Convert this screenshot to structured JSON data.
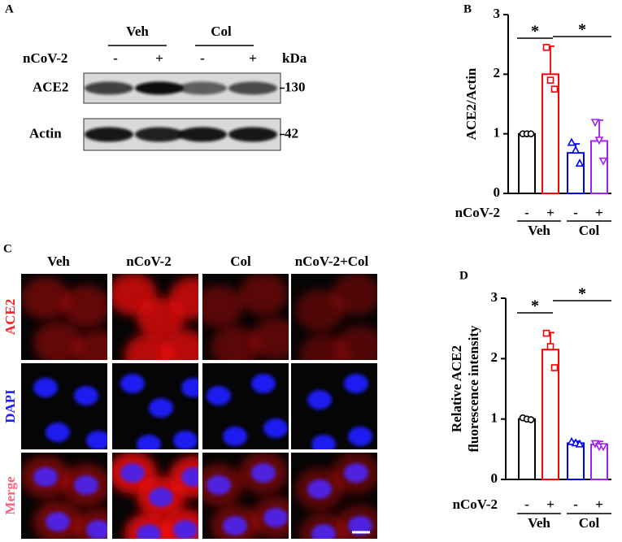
{
  "panel_a": {
    "label": "A",
    "groups": [
      "Veh",
      "Col"
    ],
    "treatment_label": "nCoV-2",
    "lanes": [
      "-",
      "+",
      "-",
      "+"
    ],
    "unit": "kDa",
    "rows": [
      {
        "name": "ACE2",
        "kda": 130
      },
      {
        "name": "Actin",
        "kda": 42
      }
    ]
  },
  "panel_c": {
    "label": "C",
    "columns": [
      "Veh",
      "nCoV-2",
      "Col",
      "nCoV-2+Col"
    ],
    "rows": [
      "ACE2",
      "DAPI",
      "Merge"
    ]
  },
  "chart_data": [
    {
      "type": "bar",
      "panel": "B",
      "ylabel": "ACE2/Actin",
      "x_row_label": "nCoV-2",
      "categories": [
        "-",
        "+",
        "-",
        "+"
      ],
      "groups": [
        "Veh",
        "Col"
      ],
      "values": [
        1.0,
        2.0,
        0.68,
        0.88
      ],
      "errors": [
        0,
        0.47,
        0.15,
        0.35
      ],
      "points": [
        [
          1.0,
          1.0,
          1.0
        ],
        [
          2.45,
          1.9,
          1.75
        ],
        [
          0.85,
          0.72,
          0.5
        ],
        [
          1.2,
          0.9,
          0.55
        ]
      ],
      "colors": [
        "#000000",
        "#ff0000",
        "#0000ff",
        "#a020f0"
      ],
      "markers": [
        "circle",
        "square",
        "triangle",
        "triangle-down"
      ],
      "ylim": [
        0,
        3
      ],
      "yticks": [
        0,
        1,
        2,
        3
      ],
      "annotations": [
        "*",
        "*"
      ]
    },
    {
      "type": "bar",
      "panel": "D",
      "ylabel": [
        "Relative ACE2",
        "fluorescence intensity"
      ],
      "x_row_label": "nCoV-2",
      "categories": [
        "-",
        "+",
        "-",
        "+"
      ],
      "groups": [
        "Veh",
        "Col"
      ],
      "values": [
        1.0,
        2.15,
        0.6,
        0.58
      ],
      "errors": [
        0.02,
        0.28,
        0.03,
        0.05
      ],
      "points": [
        [
          1.02,
          1.0,
          0.99
        ],
        [
          2.42,
          2.2,
          1.85
        ],
        [
          0.62,
          0.6,
          0.58
        ],
        [
          0.6,
          0.55,
          0.55
        ]
      ],
      "colors": [
        "#000000",
        "#ff0000",
        "#0000ff",
        "#a020f0"
      ],
      "markers": [
        "circle",
        "square",
        "triangle",
        "triangle-down"
      ],
      "ylim": [
        0,
        3
      ],
      "yticks": [
        0,
        1,
        2,
        3
      ],
      "annotations": [
        "*",
        "*"
      ]
    }
  ]
}
